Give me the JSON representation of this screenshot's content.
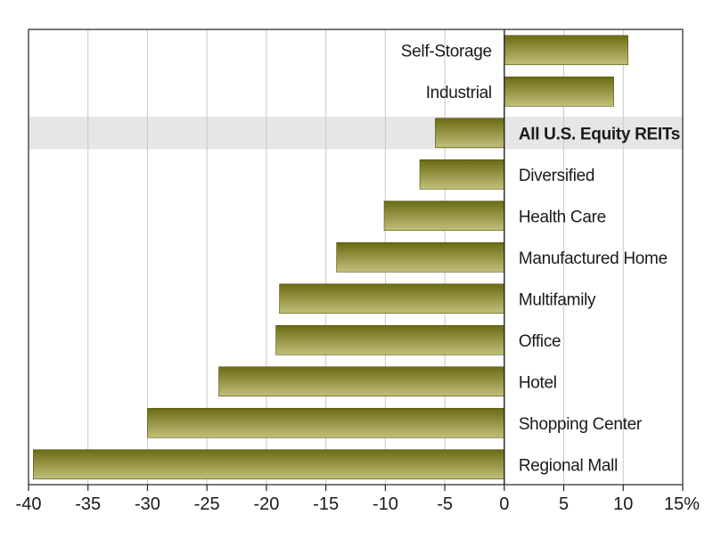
{
  "chart_data": {
    "type": "bar",
    "orientation": "horizontal",
    "title": "",
    "xlabel": "",
    "ylabel": "",
    "xlim": [
      -40,
      15
    ],
    "grid": true,
    "categories": [
      "Self-Storage",
      "Industrial",
      "All U.S. Equity REITs",
      "Diversified",
      "Health Care",
      "Manufactured Home",
      "Multifamily",
      "Office",
      "Hotel",
      "Shopping Center",
      "Regional Mall"
    ],
    "values": [
      10.4,
      9.2,
      -5.8,
      -7.1,
      -10.1,
      -14.1,
      -18.9,
      -19.2,
      -24.0,
      -30.0,
      -39.6
    ],
    "highlighted_category": "All U.S. Equity REITs",
    "x_ticks": [
      -40,
      -35,
      -30,
      -25,
      -20,
      -15,
      -10,
      -5,
      0,
      5,
      10,
      15
    ],
    "x_tick_labels": [
      "-40",
      "-35",
      "-30",
      "-25",
      "-20",
      "-15",
      "-10",
      "-5",
      "0",
      "5",
      "10",
      "15%"
    ],
    "colors": {
      "bar_dark": "#6b6b12",
      "bar_light": "#c2c07a",
      "highlight_band": "#e6e6e6",
      "grid": "#c8c8c8",
      "axis": "#222222"
    }
  }
}
